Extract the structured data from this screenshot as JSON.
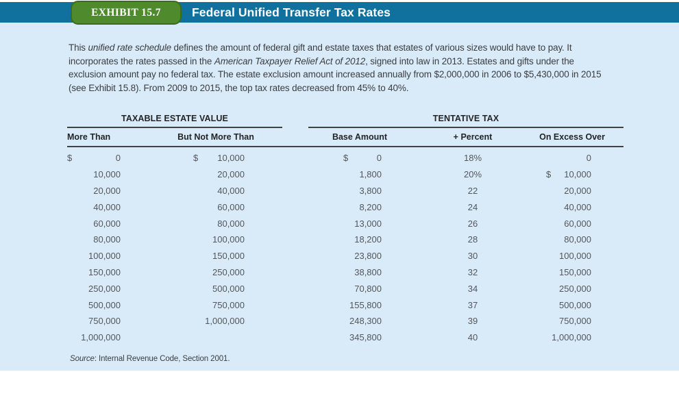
{
  "header": {
    "exhibit_label": "EXHIBIT 15.7",
    "title": "Federal Unified Transfer Tax Rates"
  },
  "intro": {
    "part1": "This ",
    "italic1": "unified rate schedule",
    "part2": " defines the amount of federal gift and estate taxes that estates of various sizes would have to pay. It incorporates the rates passed in the ",
    "italic2": "American Taxpayer Relief Act of 2012",
    "part3": ", signed into law in 2013. Estates and gifts under the exclusion amount pay no federal tax. The estate exclusion amount increased annually from $2,000,000 in 2006 to $5,430,000 in 2015 (see Exhibit 15.8). From 2009 to 2015, the top tax rates decreased from 45% to 40%."
  },
  "table": {
    "group_headers": {
      "left": "TAXABLE ESTATE VALUE",
      "right": "TENTATIVE TAX"
    },
    "columns": {
      "more_than": "More Than",
      "but_not_more_than": "But Not More Than",
      "base_amount": "Base Amount",
      "percent": "+ Percent",
      "on_excess_over": "On Excess Over"
    },
    "rows": [
      {
        "more_than": {
          "dollar": "$",
          "value": "0"
        },
        "but_not_more_than": {
          "dollar": "$",
          "value": "10,000"
        },
        "base_amount": {
          "dollar": "$",
          "value": "0"
        },
        "percent": "18%",
        "on_excess_over": {
          "dollar": "",
          "value": "0"
        }
      },
      {
        "more_than": {
          "dollar": "",
          "value": "10,000"
        },
        "but_not_more_than": {
          "dollar": "",
          "value": "20,000"
        },
        "base_amount": {
          "dollar": "",
          "value": "1,800"
        },
        "percent": "20%",
        "on_excess_over": {
          "dollar": "$",
          "value": "10,000"
        }
      },
      {
        "more_than": {
          "dollar": "",
          "value": "20,000"
        },
        "but_not_more_than": {
          "dollar": "",
          "value": "40,000"
        },
        "base_amount": {
          "dollar": "",
          "value": "3,800"
        },
        "percent": "22",
        "on_excess_over": {
          "dollar": "",
          "value": "20,000"
        }
      },
      {
        "more_than": {
          "dollar": "",
          "value": "40,000"
        },
        "but_not_more_than": {
          "dollar": "",
          "value": "60,000"
        },
        "base_amount": {
          "dollar": "",
          "value": "8,200"
        },
        "percent": "24",
        "on_excess_over": {
          "dollar": "",
          "value": "40,000"
        }
      },
      {
        "more_than": {
          "dollar": "",
          "value": "60,000"
        },
        "but_not_more_than": {
          "dollar": "",
          "value": "80,000"
        },
        "base_amount": {
          "dollar": "",
          "value": "13,000"
        },
        "percent": "26",
        "on_excess_over": {
          "dollar": "",
          "value": "60,000"
        }
      },
      {
        "more_than": {
          "dollar": "",
          "value": "80,000"
        },
        "but_not_more_than": {
          "dollar": "",
          "value": "100,000"
        },
        "base_amount": {
          "dollar": "",
          "value": "18,200"
        },
        "percent": "28",
        "on_excess_over": {
          "dollar": "",
          "value": "80,000"
        }
      },
      {
        "more_than": {
          "dollar": "",
          "value": "100,000"
        },
        "but_not_more_than": {
          "dollar": "",
          "value": "150,000"
        },
        "base_amount": {
          "dollar": "",
          "value": "23,800"
        },
        "percent": "30",
        "on_excess_over": {
          "dollar": "",
          "value": "100,000"
        }
      },
      {
        "more_than": {
          "dollar": "",
          "value": "150,000"
        },
        "but_not_more_than": {
          "dollar": "",
          "value": "250,000"
        },
        "base_amount": {
          "dollar": "",
          "value": "38,800"
        },
        "percent": "32",
        "on_excess_over": {
          "dollar": "",
          "value": "150,000"
        }
      },
      {
        "more_than": {
          "dollar": "",
          "value": "250,000"
        },
        "but_not_more_than": {
          "dollar": "",
          "value": "500,000"
        },
        "base_amount": {
          "dollar": "",
          "value": "70,800"
        },
        "percent": "34",
        "on_excess_over": {
          "dollar": "",
          "value": "250,000"
        }
      },
      {
        "more_than": {
          "dollar": "",
          "value": "500,000"
        },
        "but_not_more_than": {
          "dollar": "",
          "value": "750,000"
        },
        "base_amount": {
          "dollar": "",
          "value": "155,800"
        },
        "percent": "37",
        "on_excess_over": {
          "dollar": "",
          "value": "500,000"
        }
      },
      {
        "more_than": {
          "dollar": "",
          "value": "750,000"
        },
        "but_not_more_than": {
          "dollar": "",
          "value": "1,000,000"
        },
        "base_amount": {
          "dollar": "",
          "value": "248,300"
        },
        "percent": "39",
        "on_excess_over": {
          "dollar": "",
          "value": "750,000"
        }
      },
      {
        "more_than": {
          "dollar": "",
          "value": "1,000,000"
        },
        "but_not_more_than": {
          "dollar": "",
          "value": ""
        },
        "base_amount": {
          "dollar": "",
          "value": "345,800"
        },
        "percent": "40",
        "on_excess_over": {
          "dollar": "",
          "value": "1,000,000"
        }
      }
    ]
  },
  "source": {
    "label": "Source",
    "rest": ": Internal Revenue Code, Section 2001."
  },
  "colors": {
    "banner_blue": "#10719e",
    "badge_green": "#4f8a2c",
    "badge_border": "#3c6b1d",
    "panel_blue": "#d9ebf9"
  }
}
